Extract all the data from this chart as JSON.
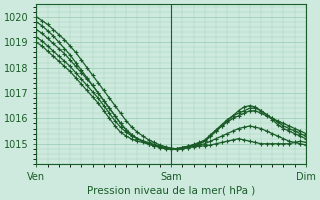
{
  "xlabel": "Pression niveau de la mer( hPa )",
  "xtick_labels": [
    "Ven",
    "Sam",
    "Dim"
  ],
  "xtick_positions": [
    0,
    48,
    96
  ],
  "ylim": [
    1014.2,
    1020.5
  ],
  "yticks": [
    1015,
    1016,
    1017,
    1018,
    1019,
    1020
  ],
  "xlim": [
    0,
    96
  ],
  "bg_color": "#ceeade",
  "grid_color": "#9ecfb8",
  "line_color": "#1a5c28",
  "series": [
    [
      1020.0,
      1019.85,
      1019.7,
      1019.5,
      1019.3,
      1019.1,
      1018.85,
      1018.6,
      1018.3,
      1018.0,
      1017.7,
      1017.4,
      1017.1,
      1016.8,
      1016.5,
      1016.2,
      1015.9,
      1015.65,
      1015.45,
      1015.3,
      1015.15,
      1015.05,
      1014.95,
      1014.88,
      1014.82,
      1014.8,
      1014.82,
      1014.85,
      1014.88,
      1014.9,
      1014.92,
      1014.95,
      1015.0,
      1015.05,
      1015.1,
      1015.15,
      1015.2,
      1015.15,
      1015.1,
      1015.05,
      1015.0,
      1015.0,
      1015.0,
      1015.0,
      1015.0,
      1015.0,
      1015.05,
      1015.1,
      1015.05
    ],
    [
      1019.8,
      1019.65,
      1019.45,
      1019.25,
      1019.0,
      1018.75,
      1018.5,
      1018.2,
      1017.9,
      1017.6,
      1017.3,
      1017.0,
      1016.7,
      1016.4,
      1016.1,
      1015.8,
      1015.55,
      1015.35,
      1015.2,
      1015.1,
      1015.0,
      1014.92,
      1014.85,
      1014.8,
      1014.78,
      1014.78,
      1014.8,
      1014.85,
      1014.9,
      1014.95,
      1015.0,
      1015.1,
      1015.2,
      1015.3,
      1015.4,
      1015.5,
      1015.6,
      1015.65,
      1015.7,
      1015.65,
      1015.6,
      1015.5,
      1015.4,
      1015.3,
      1015.2,
      1015.1,
      1015.05,
      1015.0,
      1014.95
    ],
    [
      1019.5,
      1019.35,
      1019.15,
      1018.95,
      1018.75,
      1018.55,
      1018.3,
      1018.05,
      1017.8,
      1017.55,
      1017.3,
      1017.0,
      1016.7,
      1016.4,
      1016.1,
      1015.8,
      1015.55,
      1015.35,
      1015.2,
      1015.1,
      1015.0,
      1014.92,
      1014.87,
      1014.83,
      1014.8,
      1014.8,
      1014.85,
      1014.9,
      1014.95,
      1015.0,
      1015.1,
      1015.3,
      1015.5,
      1015.7,
      1015.85,
      1016.0,
      1016.1,
      1016.2,
      1016.3,
      1016.3,
      1016.2,
      1016.1,
      1016.0,
      1015.9,
      1015.8,
      1015.7,
      1015.6,
      1015.5,
      1015.4
    ],
    [
      1019.2,
      1019.05,
      1018.85,
      1018.65,
      1018.45,
      1018.25,
      1018.05,
      1017.8,
      1017.55,
      1017.3,
      1017.05,
      1016.8,
      1016.5,
      1016.2,
      1015.9,
      1015.65,
      1015.45,
      1015.3,
      1015.2,
      1015.1,
      1015.05,
      1014.97,
      1014.9,
      1014.85,
      1014.82,
      1014.8,
      1014.85,
      1014.9,
      1014.95,
      1015.0,
      1015.1,
      1015.3,
      1015.5,
      1015.7,
      1015.9,
      1016.1,
      1016.3,
      1016.45,
      1016.5,
      1016.45,
      1016.3,
      1016.15,
      1016.0,
      1015.85,
      1015.7,
      1015.6,
      1015.5,
      1015.4,
      1015.3
    ],
    [
      1019.0,
      1018.85,
      1018.65,
      1018.45,
      1018.25,
      1018.05,
      1017.85,
      1017.6,
      1017.35,
      1017.1,
      1016.85,
      1016.6,
      1016.3,
      1016.0,
      1015.7,
      1015.45,
      1015.3,
      1015.18,
      1015.1,
      1015.05,
      1014.98,
      1014.92,
      1014.87,
      1014.83,
      1014.8,
      1014.8,
      1014.85,
      1014.9,
      1014.97,
      1015.05,
      1015.15,
      1015.35,
      1015.55,
      1015.75,
      1015.95,
      1016.1,
      1016.2,
      1016.3,
      1016.4,
      1016.4,
      1016.3,
      1016.15,
      1015.95,
      1015.75,
      1015.6,
      1015.5,
      1015.4,
      1015.3,
      1015.2
    ]
  ]
}
